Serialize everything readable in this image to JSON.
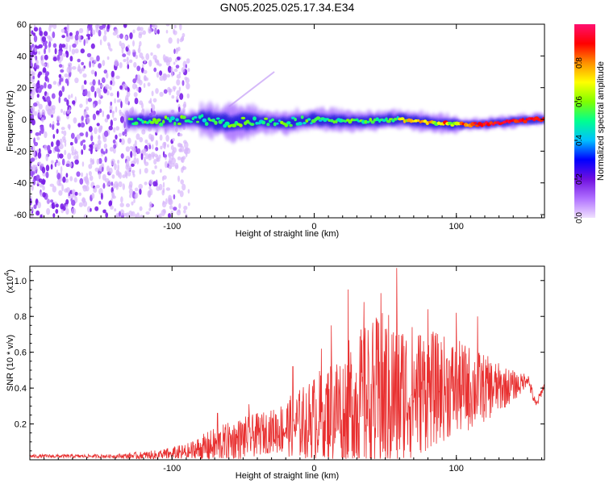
{
  "title": "GN05.2025.025.17.34.E34",
  "chart_data": [
    {
      "type": "heatmap",
      "xlabel": "Height of straight line (km)",
      "ylabel": "Frequency (Hz)",
      "xlim": [
        -200,
        162
      ],
      "ylim": [
        -62,
        60
      ],
      "xticks": [
        -100,
        0,
        100
      ],
      "yticks": [
        -60,
        -40,
        -20,
        0,
        20,
        40,
        60
      ],
      "ytick_labels": [
        "-60",
        "-40",
        "-20",
        "0",
        "20",
        "40",
        "60"
      ],
      "colorbar": {
        "label": "Normalized spectral amplitude",
        "range": [
          0,
          1
        ],
        "ticks": [
          0.0,
          0.2,
          0.4,
          0.6,
          0.8
        ],
        "tick_labels": [
          "0.0",
          "0.2",
          "0.4",
          "0.6",
          "0.8"
        ],
        "colormap": [
          "#f0e0ff",
          "#b070ff",
          "#7010e0",
          "#0000ff",
          "#00c0ff",
          "#00ff90",
          "#80ff00",
          "#ffff00",
          "#ff9000",
          "#ff0000",
          "#ff1070"
        ]
      },
      "ridge": [
        {
          "x": -130,
          "freq": -1
        },
        {
          "x": -100,
          "freq": -1
        },
        {
          "x": -80,
          "freq": 0
        },
        {
          "x": -60,
          "freq": -2
        },
        {
          "x": -40,
          "freq": -1
        },
        {
          "x": -20,
          "freq": -2
        },
        {
          "x": 0,
          "freq": 0
        },
        {
          "x": 20,
          "freq": -1
        },
        {
          "x": 40,
          "freq": -1
        },
        {
          "x": 60,
          "freq": 0
        },
        {
          "x": 80,
          "freq": -2
        },
        {
          "x": 100,
          "freq": -3
        },
        {
          "x": 120,
          "freq": -3
        },
        {
          "x": 140,
          "freq": -1
        },
        {
          "x": 162,
          "freq": 0
        }
      ],
      "noise_region_km": [
        -200,
        -88
      ]
    },
    {
      "type": "line",
      "xlabel": "Height of straight line (km)",
      "ylabel": "SNR (10 * v/v)",
      "y_scale_label": "(x10",
      "y_scale_exp": "4",
      "xlim": [
        -200,
        162
      ],
      "ylim": [
        0.0,
        1.08
      ],
      "xticks": [
        -100,
        0,
        100
      ],
      "yticks": [
        0.2,
        0.4,
        0.6,
        0.8,
        1.0
      ],
      "ytick_labels": [
        "0.2",
        "0.4",
        "0.6",
        "0.8",
        "1.0"
      ],
      "series": [
        {
          "name": "SNR",
          "color": "#e83030",
          "envelope": [
            {
              "x": -200,
              "base": 0.02,
              "amp": 0.01
            },
            {
              "x": -140,
              "base": 0.02,
              "amp": 0.01
            },
            {
              "x": -110,
              "base": 0.025,
              "amp": 0.03
            },
            {
              "x": -90,
              "base": 0.04,
              "amp": 0.05
            },
            {
              "x": -70,
              "base": 0.08,
              "amp": 0.1
            },
            {
              "x": -50,
              "base": 0.12,
              "amp": 0.12
            },
            {
              "x": -30,
              "base": 0.16,
              "amp": 0.12
            },
            {
              "x": -10,
              "base": 0.2,
              "amp": 0.2
            },
            {
              "x": 10,
              "base": 0.27,
              "amp": 0.28
            },
            {
              "x": 30,
              "base": 0.32,
              "amp": 0.4
            },
            {
              "x": 50,
              "base": 0.34,
              "amp": 0.5
            },
            {
              "x": 70,
              "base": 0.38,
              "amp": 0.38
            },
            {
              "x": 90,
              "base": 0.4,
              "amp": 0.3
            },
            {
              "x": 110,
              "base": 0.4,
              "amp": 0.24
            },
            {
              "x": 130,
              "base": 0.4,
              "amp": 0.14
            },
            {
              "x": 145,
              "base": 0.42,
              "amp": 0.06
            },
            {
              "x": 150,
              "base": 0.46,
              "amp": 0.04
            },
            {
              "x": 156,
              "base": 0.3,
              "amp": 0.03
            },
            {
              "x": 162,
              "base": 0.42,
              "amp": 0.02
            }
          ],
          "peaks": [
            {
              "x": 58,
              "y": 1.07
            },
            {
              "x": 24,
              "y": 0.95
            },
            {
              "x": 47,
              "y": 0.93
            },
            {
              "x": 35,
              "y": 0.88
            },
            {
              "x": 80,
              "y": 0.84
            },
            {
              "x": 100,
              "y": 0.82
            },
            {
              "x": 115,
              "y": 0.8
            },
            {
              "x": 12,
              "y": 0.75
            },
            {
              "x": 5,
              "y": 0.62
            },
            {
              "x": -15,
              "y": 0.52
            },
            {
              "x": -46,
              "y": 0.31
            },
            {
              "x": -68,
              "y": 0.26
            }
          ]
        }
      ]
    }
  ]
}
